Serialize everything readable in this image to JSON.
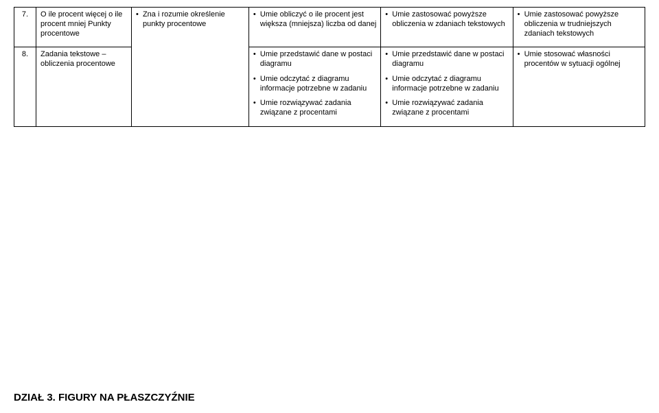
{
  "rows": [
    {
      "num": "7.",
      "title": "O ile procent więcej o ile procent mniej Punkty procentowe",
      "c2": [
        "Zna i rozumie określenie punkty procentowe"
      ],
      "c3": [
        "Umie obliczyć o ile procent jest większa (mniejsza) liczba od danej"
      ],
      "c4": [
        "Umie zastosować powyższe obliczenia w zdaniach tekstowych"
      ],
      "c5": [
        "Umie zastosować powyższe obliczenia w trudniejszych zdaniach tekstowych"
      ]
    },
    {
      "num": "8.",
      "title": "Zadania tekstowe – obliczenia procentowe",
      "c2": [],
      "c3": [
        "Umie przedstawić dane w postaci diagramu",
        "Umie odczytać z diagramu informacje potrzebne w zadaniu",
        "Umie rozwiązywać zadania związane z procentami"
      ],
      "c4": [
        "Umie przedstawić dane w postaci diagramu",
        "Umie odczytać z diagramu informacje potrzebne w zadaniu",
        "Umie rozwiązywać zadania związane z procentami"
      ],
      "c5": [
        "Umie stosować własności procentów w sytuacji ogólnej"
      ]
    }
  ],
  "section_title": "DZIAŁ 3. FIGURY NA PŁASZCZYŹNIE"
}
